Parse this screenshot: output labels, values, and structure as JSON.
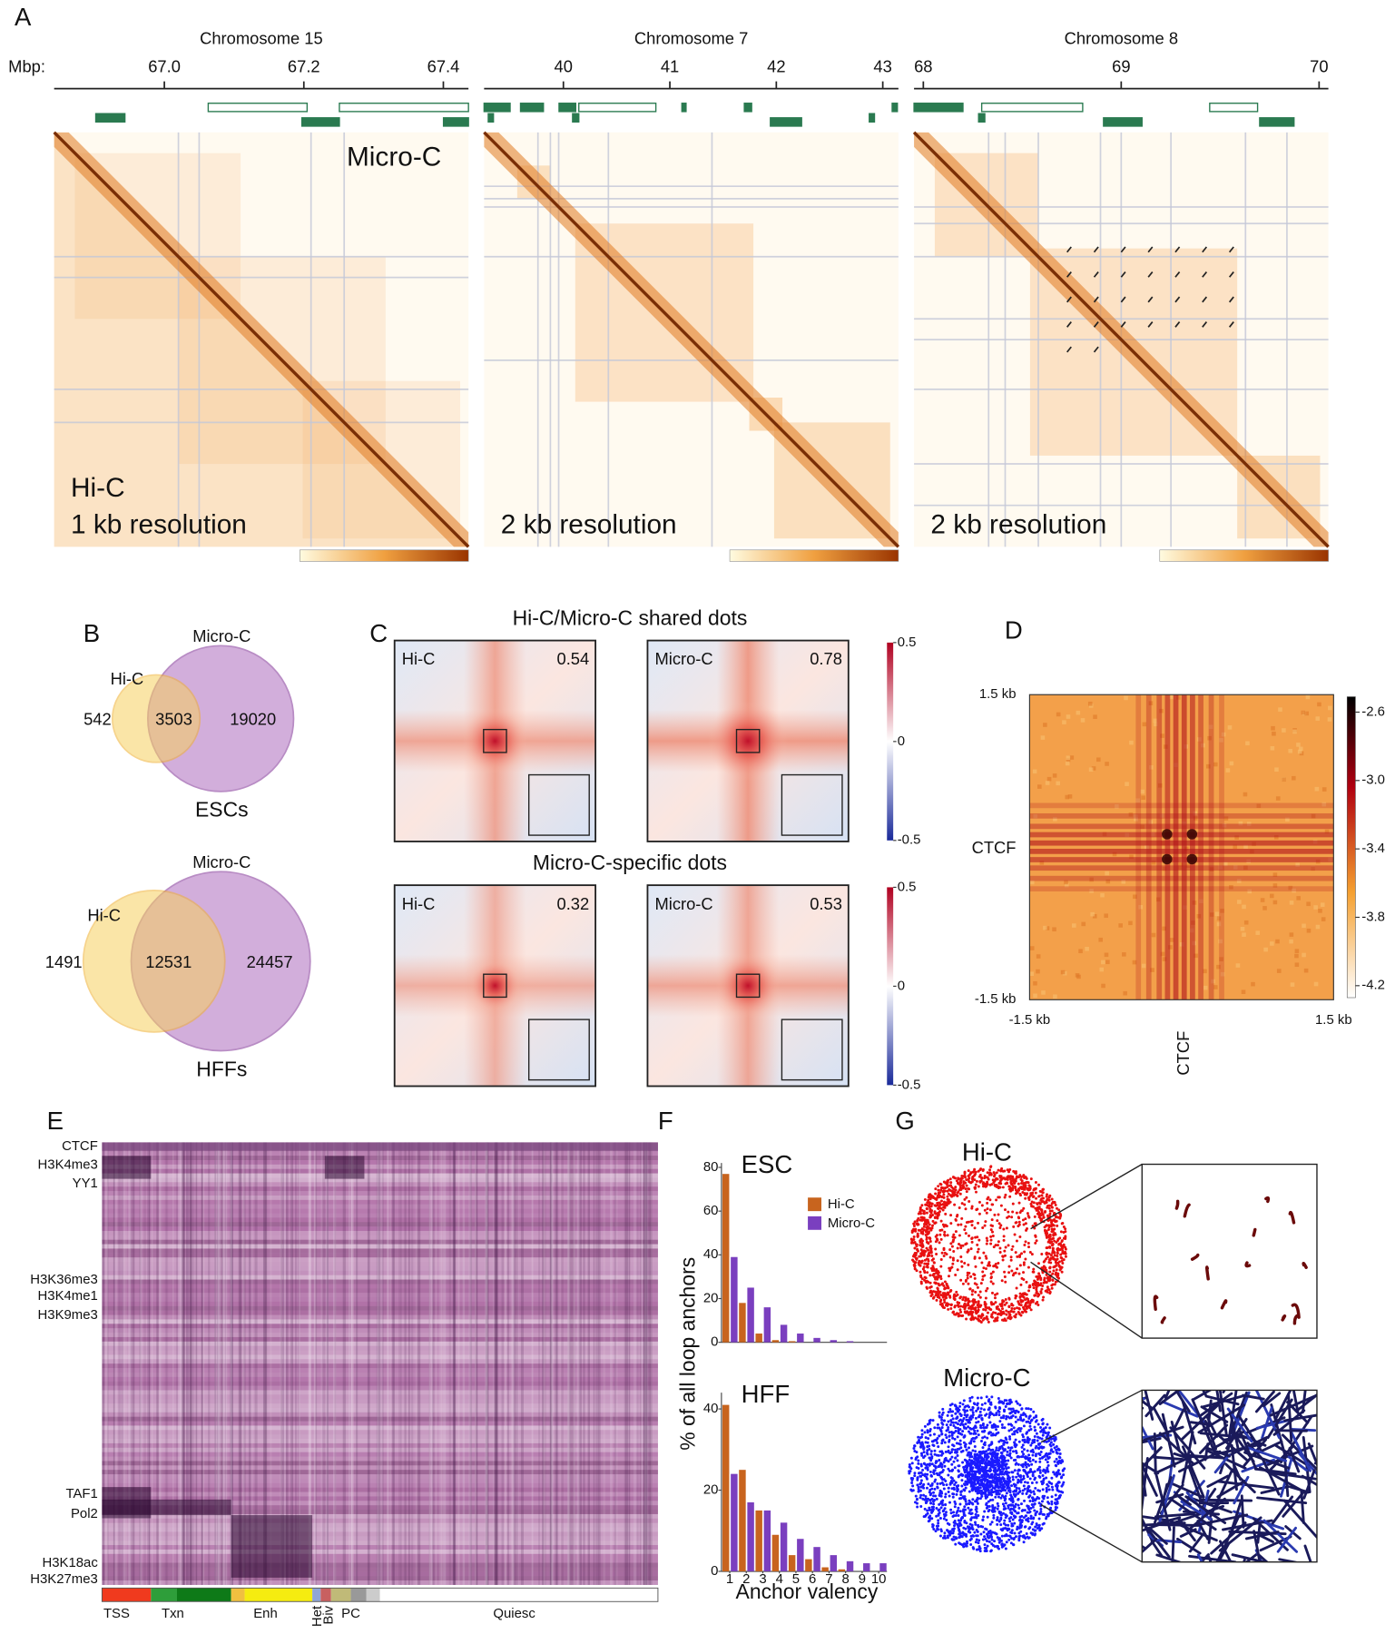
{
  "figure": {
    "panel_labels": [
      "A",
      "B",
      "C",
      "D",
      "E",
      "F",
      "G"
    ]
  },
  "panel_a": {
    "axis_unit": "Mbp:",
    "upper_label": "Micro-C",
    "lower_label": "Hi-C",
    "tracks": [
      {
        "title": "Chromosome 15",
        "resolution": "1 kb resolution",
        "xlim": [
          66.842,
          67.436
        ],
        "xticks": [
          {
            "value": 67,
            "label": "67.0"
          },
          67.2,
          67.4
        ]
      },
      {
        "title": "Chromosome 7",
        "resolution": "2 kb resolution",
        "xlim": [
          39.255,
          43.147
        ],
        "xticks": [
          40,
          41,
          42,
          43
        ]
      },
      {
        "title": "Chromosome 8",
        "resolution": "2 kb resolution",
        "xlim": [
          67.953,
          70.047
        ],
        "xticks": [
          68,
          69,
          70
        ]
      }
    ]
  },
  "panel_b": {
    "venns": [
      {
        "outer": "Micro-C",
        "inner": "Hi-C",
        "inner_only": 542,
        "shared": 3503,
        "outer_only": 19020,
        "cell_type": "ESCs"
      },
      {
        "outer": "Micro-C",
        "inner": "Hi-C",
        "inner_only": 1491,
        "shared": 12531,
        "outer_only": 24457,
        "cell_type": "HFFs"
      }
    ]
  },
  "panel_c": {
    "rows": [
      {
        "title": "Hi-C/Micro-C shared dots",
        "maps": [
          {
            "label": "Hi-C",
            "score": 0.54
          },
          {
            "label": "Micro-C",
            "score": 0.78
          }
        ]
      },
      {
        "title": "Micro-C-specific dots",
        "maps": [
          {
            "label": "Hi-C",
            "score": 0.32
          },
          {
            "label": "Micro-C",
            "score": 0.53
          }
        ]
      }
    ],
    "colorbar": {
      "lim": [
        -0.5,
        0.5
      ],
      "ticks": [
        0.5,
        0,
        -0.5
      ]
    }
  },
  "panel_d": {
    "y_label": "CTCF",
    "x_label": "CTCF",
    "y_ends": [
      "1.5 kb",
      "-1.5 kb"
    ],
    "x_ends": [
      "-1.5 kb",
      "1.5 kb"
    ],
    "colorbar": {
      "lim": [
        -4.27,
        -2.51
      ],
      "ticks": [
        -2.6,
        {
          "value": -3,
          "label": "-3.0"
        },
        -3.4,
        -3.8,
        -4.2
      ]
    }
  },
  "panel_e": {
    "marks": [
      "CTCF",
      "H3K4me3",
      "YY1",
      "H3K36me3",
      "H3K4me1",
      "H3K9me3",
      "TAF1",
      "Pol2",
      "H3K18ac",
      "H3K27me3"
    ],
    "states": [
      "TSS",
      "Txn",
      "Enh",
      "Het",
      "Biv",
      "PC",
      "Quiesc"
    ]
  },
  "chart_data": [
    {
      "type": "bar",
      "title": "ESC",
      "x": [
        1,
        2,
        3,
        4,
        5,
        6,
        7,
        8,
        9,
        10
      ],
      "xlim": [
        0.5,
        10.5
      ],
      "ylim": [
        0,
        82
      ],
      "yticks": [
        0,
        20,
        40,
        60,
        80
      ],
      "ylabel": "% of all loop anchors",
      "legend": "upper right",
      "series": [
        {
          "name": "Hi-C",
          "color": "#c8641e",
          "values": [
            77,
            18,
            4,
            1,
            0.5,
            0,
            0,
            0,
            0,
            0
          ]
        },
        {
          "name": "Micro-C",
          "color": "#7a3fbf",
          "values": [
            39,
            25,
            16,
            8,
            4,
            2,
            1,
            0.5,
            0,
            0
          ]
        }
      ]
    },
    {
      "type": "bar",
      "title": "HFF",
      "x": [
        1,
        2,
        3,
        4,
        5,
        6,
        7,
        8,
        9,
        10
      ],
      "xlim": [
        0.5,
        10.5
      ],
      "xticks": [
        1,
        2,
        3,
        4,
        5,
        6,
        7,
        8,
        9,
        10
      ],
      "xlabel": "Anchor valency",
      "ylim": [
        0,
        44
      ],
      "yticks": [
        0,
        20,
        40
      ],
      "series": [
        {
          "color": "#c8641e",
          "values": [
            41,
            25,
            15,
            9,
            4,
            3,
            1,
            0.5,
            0,
            0
          ]
        },
        {
          "color": "#7a3fbf",
          "values": [
            24,
            17,
            15,
            12,
            8,
            6,
            4,
            2.5,
            2,
            2
          ]
        }
      ]
    }
  ],
  "panel_g": {
    "top": "Hi-C",
    "bottom": "Micro-C"
  }
}
